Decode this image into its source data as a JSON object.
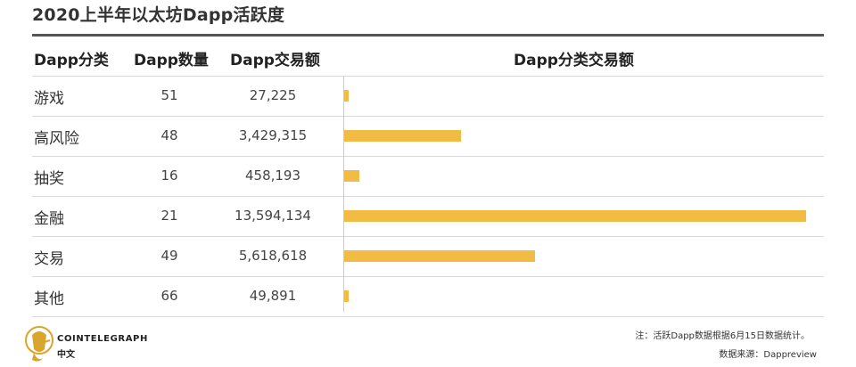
{
  "title": "2020上半年以太坊Dapp活跃度",
  "headers": {
    "category": "Dapp分类",
    "count": "Dapp数量",
    "volume": "Dapp交易额",
    "bar": "Dapp分类交易额"
  },
  "rows": [
    {
      "category": "游戏",
      "count": "51",
      "volume": "27,225"
    },
    {
      "category": "高风险",
      "count": "48",
      "volume": "3,429,315"
    },
    {
      "category": "抽奖",
      "count": "16",
      "volume": "458,193"
    },
    {
      "category": "金融",
      "count": "21",
      "volume": "13,594,134"
    },
    {
      "category": "交易",
      "count": "49",
      "volume": "5,618,618"
    },
    {
      "category": "其他",
      "count": "66",
      "volume": "49,891"
    }
  ],
  "chart_data": {
    "type": "bar",
    "orientation": "horizontal",
    "title": "Dapp分类交易额",
    "categories": [
      "游戏",
      "高风险",
      "抽奖",
      "金融",
      "交易",
      "其他"
    ],
    "values": [
      27225,
      3429315,
      458193,
      13594134,
      5618618,
      49891
    ],
    "counts": [
      51,
      48,
      16,
      21,
      49,
      66
    ],
    "bar_color": "#f2bc44"
  },
  "footer": {
    "note": "注：活跃Dapp数据根据6月15日数据统计。",
    "source": "数据来源：Dappreview",
    "brand": "COINTELEGRAPH",
    "brand_sub": "中文"
  },
  "colors": {
    "accent": "#f2bc44",
    "rule": "#555555",
    "grid": "#d9d9d9"
  }
}
